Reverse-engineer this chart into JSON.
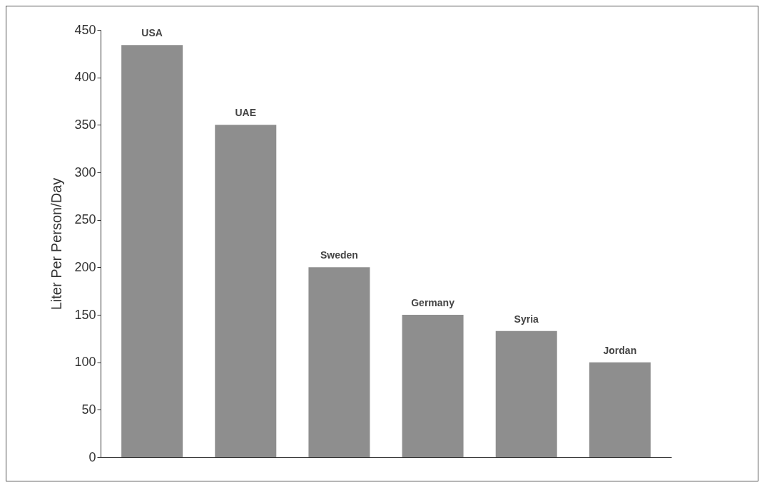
{
  "chart_data": {
    "type": "bar",
    "ylabel": "Liter Per Person/Day",
    "categories": [
      "USA",
      "UAE",
      "Sweden",
      "Germany",
      "Syria",
      "Jordan"
    ],
    "values": [
      434,
      350,
      200,
      150,
      133,
      100
    ],
    "color": "#8e8e8e",
    "ylim": [
      0,
      450
    ],
    "yticks": [
      0,
      50,
      100,
      150,
      200,
      250,
      300,
      350,
      400,
      450
    ],
    "grid": false
  }
}
